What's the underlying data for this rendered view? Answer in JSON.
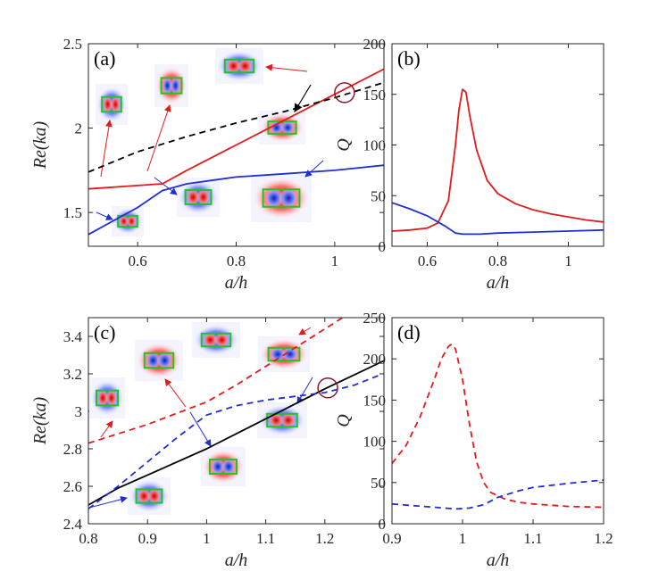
{
  "chart_data": [
    {
      "panel": "(a)",
      "type": "line",
      "xlabel": "a/h",
      "ylabel": "Re(ka)",
      "xlim": [
        0.5,
        1.1
      ],
      "ylim": [
        1.3,
        2.5
      ],
      "xticks": [
        "0.6",
        "0.8",
        "1"
      ],
      "yticks": [
        "1.5",
        "2",
        "2.5"
      ],
      "series": [
        {
          "name": "red solid",
          "color": "#e41a1c",
          "dash": "",
          "x": [
            0.5,
            0.6,
            0.65,
            0.7,
            0.8,
            0.9,
            1.0,
            1.1
          ],
          "y": [
            1.64,
            1.66,
            1.67,
            1.75,
            1.9,
            2.05,
            2.2,
            2.35
          ]
        },
        {
          "name": "blue solid",
          "color": "#1f2fd6",
          "dash": "",
          "x": [
            0.5,
            0.6,
            0.65,
            0.7,
            0.8,
            0.9,
            1.0,
            1.1
          ],
          "y": [
            1.37,
            1.53,
            1.63,
            1.67,
            1.71,
            1.73,
            1.75,
            1.78
          ]
        },
        {
          "name": "black dashed",
          "color": "#000000",
          "dash": "7,5",
          "x": [
            0.5,
            0.6,
            0.7,
            0.8,
            0.9,
            1.0,
            1.1
          ],
          "y": [
            1.74,
            1.86,
            1.95,
            2.03,
            2.1,
            2.18,
            2.27
          ]
        }
      ],
      "annotation": "circle at crossing near a/h=1.0, Re(ka)=2.21",
      "insets": 7
    },
    {
      "panel": "(b)",
      "type": "line",
      "xlabel": "a/h",
      "ylabel": "Q",
      "xlim": [
        0.5,
        1.1
      ],
      "ylim": [
        0,
        200
      ],
      "xticks": [
        "0.6",
        "0.8",
        "1"
      ],
      "yticks": [
        "0",
        "50",
        "100",
        "150",
        "200"
      ],
      "series": [
        {
          "name": "red solid",
          "color": "#e41a1c",
          "dash": "",
          "x": [
            0.5,
            0.55,
            0.6,
            0.63,
            0.66,
            0.68,
            0.69,
            0.7,
            0.71,
            0.72,
            0.74,
            0.77,
            0.8,
            0.85,
            0.9,
            0.95,
            1.0,
            1.05,
            1.1
          ],
          "y": [
            15,
            16,
            18,
            23,
            45,
            100,
            135,
            155,
            152,
            130,
            95,
            65,
            52,
            42,
            36,
            32,
            29,
            26,
            24
          ]
        },
        {
          "name": "blue solid",
          "color": "#1f2fd6",
          "dash": "",
          "x": [
            0.5,
            0.55,
            0.6,
            0.65,
            0.68,
            0.7,
            0.75,
            0.8,
            0.9,
            1.0,
            1.1
          ],
          "y": [
            43,
            37,
            30,
            20,
            13,
            12,
            12,
            13,
            14,
            15,
            16
          ]
        }
      ]
    },
    {
      "panel": "(c)",
      "type": "line",
      "xlabel": "a/h",
      "ylabel": "Re(ka)",
      "xlim": [
        0.8,
        1.3
      ],
      "ylim": [
        2.4,
        3.5
      ],
      "xticks": [
        "0.8",
        "0.9",
        "1",
        "1.1",
        "1.2"
      ],
      "yticks": [
        "2.4",
        "2.6",
        "2.8",
        "3",
        "3.2",
        "3.4"
      ],
      "series": [
        {
          "name": "black solid",
          "color": "#000000",
          "dash": "",
          "x": [
            0.8,
            0.85,
            0.9,
            1.0,
            1.1,
            1.2,
            1.3
          ],
          "y": [
            2.5,
            2.59,
            2.66,
            2.8,
            2.96,
            3.12,
            3.27
          ]
        },
        {
          "name": "red dashed",
          "color": "#e41a1c",
          "dash": "7,5",
          "x": [
            0.8,
            0.85,
            0.9,
            0.95,
            1.0,
            1.05,
            1.1,
            1.15,
            1.2,
            1.23
          ],
          "y": [
            2.83,
            2.88,
            2.93,
            2.99,
            3.05,
            3.14,
            3.24,
            3.34,
            3.44,
            3.5
          ]
        },
        {
          "name": "blue dashed",
          "color": "#1f2fd6",
          "dash": "7,5",
          "x": [
            0.8,
            0.85,
            0.9,
            0.95,
            1.0,
            1.05,
            1.1,
            1.15,
            1.2,
            1.25,
            1.29
          ],
          "y": [
            2.48,
            2.6,
            2.73,
            2.86,
            2.98,
            3.03,
            3.06,
            3.08,
            3.1,
            3.14,
            3.19
          ]
        }
      ],
      "annotation": "circle at crossing near a/h=1.21, Re(ka)=3.12",
      "insets": 7
    },
    {
      "panel": "(d)",
      "type": "line",
      "xlabel": "a/h",
      "ylabel": "Q",
      "xlim": [
        0.9,
        1.2
      ],
      "ylim": [
        0,
        250
      ],
      "xticks": [
        "0.9",
        "1",
        "1.1",
        "1.2"
      ],
      "yticks": [
        "0",
        "50",
        "100",
        "150",
        "200",
        "250"
      ],
      "series": [
        {
          "name": "red dashed",
          "color": "#e41a1c",
          "dash": "7,5",
          "x": [
            0.9,
            0.92,
            0.94,
            0.96,
            0.97,
            0.98,
            0.985,
            0.99,
            1.0,
            1.01,
            1.02,
            1.03,
            1.04,
            1.06,
            1.08,
            1.1,
            1.15,
            1.2
          ],
          "y": [
            73,
            95,
            130,
            175,
            200,
            215,
            218,
            212,
            175,
            120,
            75,
            50,
            38,
            30,
            26,
            24,
            21,
            20
          ]
        },
        {
          "name": "blue dashed",
          "color": "#1f2fd6",
          "dash": "7,5",
          "x": [
            0.9,
            0.93,
            0.96,
            0.99,
            1.01,
            1.03,
            1.05,
            1.08,
            1.1,
            1.15,
            1.2
          ],
          "y": [
            24,
            22,
            20,
            18,
            19,
            23,
            32,
            40,
            44,
            49,
            53
          ]
        }
      ]
    }
  ]
}
